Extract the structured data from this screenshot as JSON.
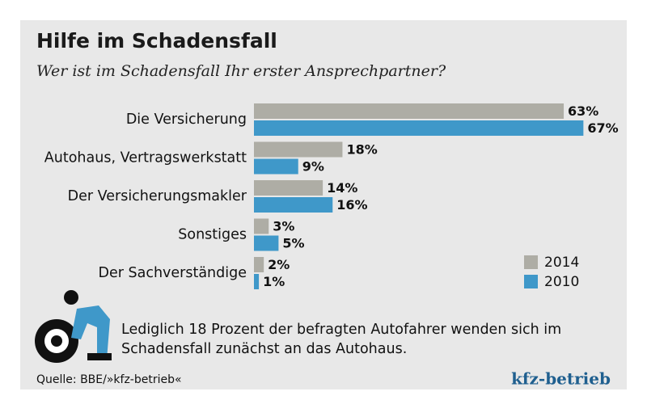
{
  "chart_data": {
    "type": "bar",
    "orientation": "horizontal",
    "title": "Hilfe im Schadensfall",
    "subtitle": "Wer ist im Schadensfall Ihr erster Ansprechpartner?",
    "categories": [
      "Die Versicherung",
      "Autohaus, Vertragswerkstatt",
      "Der Versicherungsmakler",
      "Sonstiges",
      "Der Sachverständige"
    ],
    "series": [
      {
        "name": "2014",
        "color": "#aeada5",
        "values": [
          63,
          18,
          14,
          3,
          2
        ],
        "value_labels": [
          "63%",
          "18%",
          "14%",
          "3%",
          "2%"
        ]
      },
      {
        "name": "2010",
        "color": "#3f98c9",
        "values": [
          67,
          9,
          16,
          5,
          1
        ],
        "value_labels": [
          "67%",
          "9%",
          "16%",
          "5%",
          "1%"
        ]
      }
    ],
    "legend": "lower right",
    "annotation": [
      "Lediglich 18 Prozent der befragten Autofahrer wenden sich im",
      "Schadensfall zunächst an das Autohaus."
    ],
    "source": "Quelle: BBE/»kfz-betrieb«",
    "logo": "kfz-betrieb"
  }
}
